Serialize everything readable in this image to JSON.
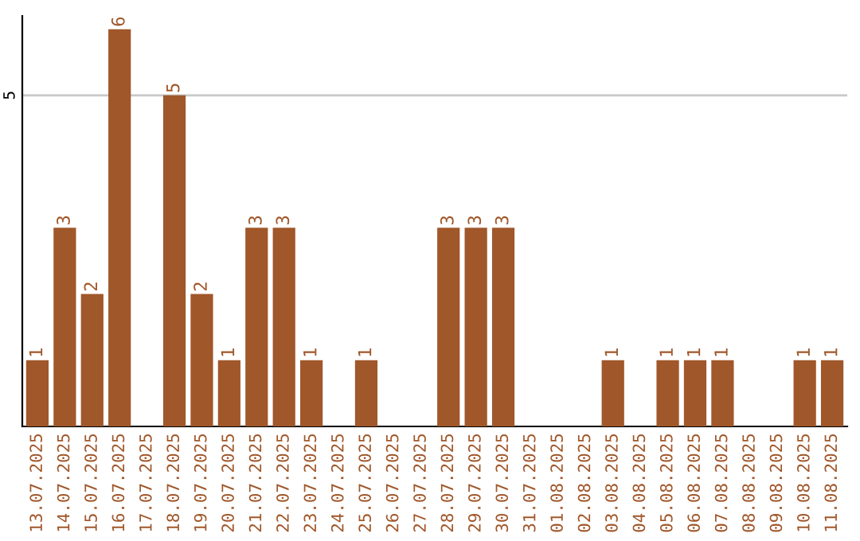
{
  "chart_data": {
    "type": "bar",
    "categories": [
      "13.07.2025",
      "14.07.2025",
      "15.07.2025",
      "16.07.2025",
      "17.07.2025",
      "18.07.2025",
      "19.07.2025",
      "20.07.2025",
      "21.07.2025",
      "22.07.2025",
      "23.07.2025",
      "24.07.2025",
      "25.07.2025",
      "26.07.2025",
      "27.07.2025",
      "28.07.2025",
      "29.07.2025",
      "30.07.2025",
      "31.07.2025",
      "01.08.2025",
      "02.08.2025",
      "03.08.2025",
      "04.08.2025",
      "05.08.2025",
      "06.08.2025",
      "07.08.2025",
      "08.08.2025",
      "09.08.2025",
      "10.08.2025",
      "11.08.2025"
    ],
    "values": [
      1,
      3,
      2,
      6,
      0,
      5,
      2,
      1,
      3,
      3,
      1,
      0,
      1,
      0,
      0,
      3,
      3,
      3,
      0,
      0,
      0,
      1,
      0,
      1,
      1,
      1,
      0,
      0,
      1,
      1
    ],
    "value_labels": [
      "1",
      "3",
      "2",
      "6",
      null,
      "5",
      "2",
      "1",
      "3",
      "3",
      "1",
      null,
      "1",
      null,
      null,
      "3",
      "3",
      "3",
      null,
      null,
      null,
      "1",
      null,
      "1",
      "1",
      "1",
      null,
      null,
      "1",
      "1"
    ],
    "color": "#a0572a",
    "ylim": [
      0,
      6.2
    ],
    "yticks": [
      5
    ],
    "grid": "y"
  }
}
